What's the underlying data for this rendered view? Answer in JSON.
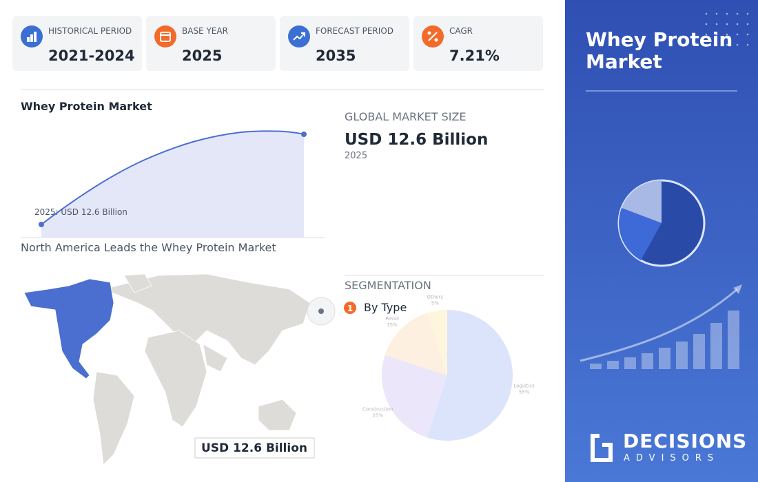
{
  "stats": [
    {
      "label": "HISTORICAL PERIOD",
      "value": "2021-2024"
    },
    {
      "label": "BASE YEAR",
      "value": "2025"
    },
    {
      "label": "FORECAST PERIOD",
      "value": "2035"
    },
    {
      "label": "CAGR",
      "value": "7.21%"
    }
  ],
  "market_chart": {
    "title": "Whey Protein Market",
    "annotation": "2025: USD 12.6 Billion"
  },
  "market_size": {
    "label": "GLOBAL MARKET SIZE",
    "value": "USD 12.6 Billion",
    "year": "2025"
  },
  "map": {
    "title": "North America Leads the Whey Protein Market",
    "value_label": "USD 12.6 Billion"
  },
  "segmentation": {
    "title": "SEGMENTATION",
    "marker": "1",
    "segment": "By Type",
    "chart_data": {
      "type": "pie",
      "categories": [
        "Logistics",
        "Construction",
        "Retail",
        "Others"
      ],
      "values": [
        55,
        25,
        15,
        5
      ],
      "value_labels": [
        "55%",
        "25%",
        "15%",
        "5%"
      ],
      "colors": [
        "#dbe4fb",
        "#ece6fb",
        "#fdf0e0",
        "#fef6dc"
      ]
    }
  },
  "sidebar": {
    "title": "Whey Protein Market",
    "brand": "DECISIONS",
    "brand_sub": "ADVISORS"
  }
}
